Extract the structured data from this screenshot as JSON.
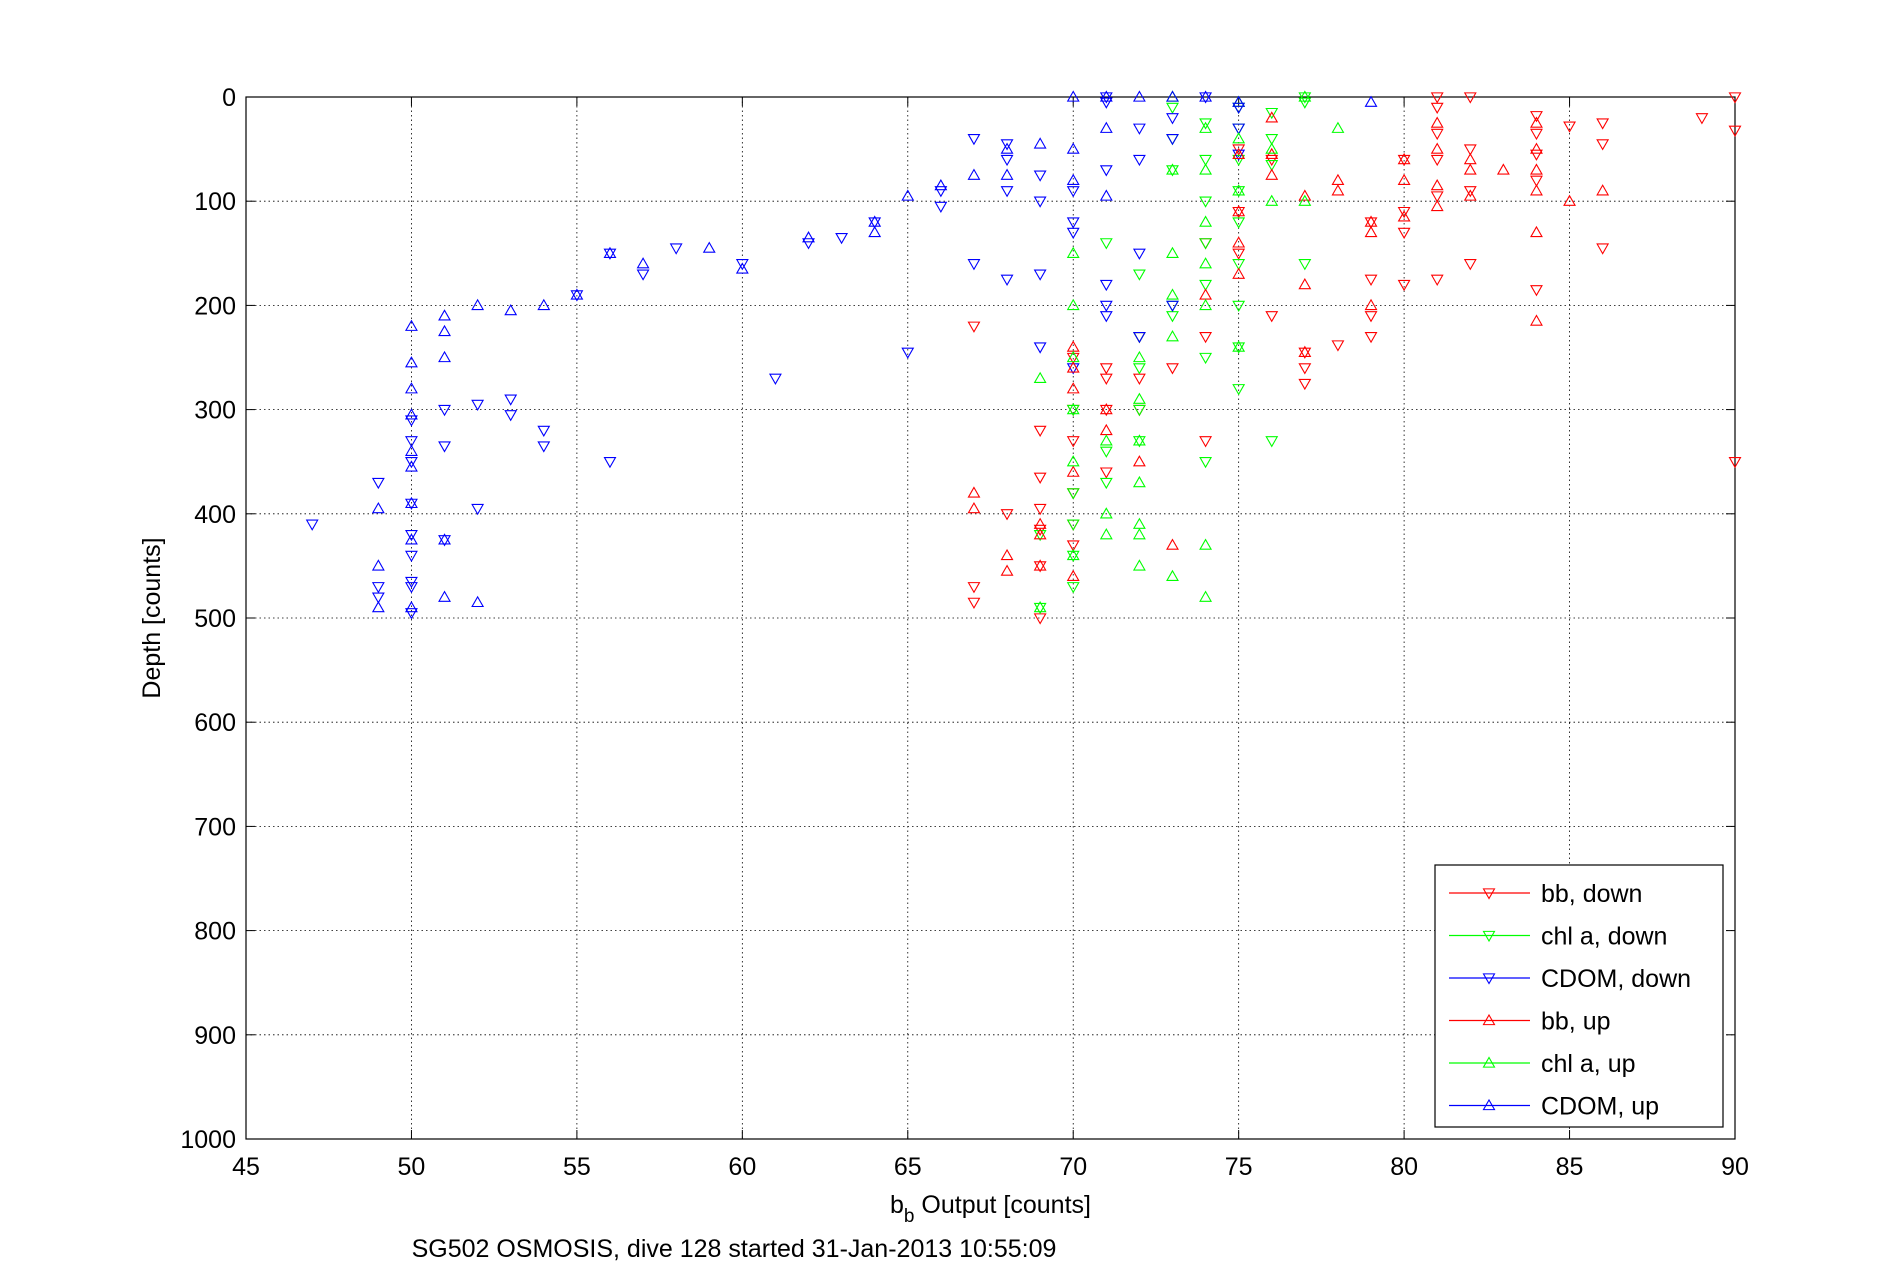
{
  "chart_data": {
    "type": "scatter",
    "title": "",
    "xlabel": {
      "main": "b",
      "sub": "b",
      "rest": " Output [counts]"
    },
    "ylabel": "Depth [counts]",
    "caption": "SG502 OSMOSIS, dive 128 started 31-Jan-2013 10:55:09",
    "xlim": [
      45,
      90
    ],
    "ylim": [
      0,
      1000
    ],
    "y_reversed": true,
    "grid": true,
    "legend_position": "bottom-right",
    "xticks": [
      "45",
      "50",
      "55",
      "60",
      "65",
      "70",
      "75",
      "80",
      "85",
      "90"
    ],
    "yticks": [
      "0",
      "100",
      "200",
      "300",
      "400",
      "500",
      "600",
      "700",
      "800",
      "900",
      "1000"
    ],
    "series": [
      {
        "name": "bb, down",
        "marker": "triangle-down",
        "color": "#ff0000",
        "x": [
          90,
          89,
          90,
          86,
          85,
          86,
          84,
          84,
          84,
          84,
          82,
          82,
          82,
          81,
          81,
          81,
          81,
          81,
          80,
          80,
          80,
          80,
          79,
          79,
          79,
          79,
          78,
          77,
          77,
          77,
          82,
          84,
          86,
          81,
          90,
          76,
          76,
          75,
          75,
          75,
          74,
          74,
          73,
          72,
          71,
          71,
          70,
          70,
          70,
          70,
          69,
          69,
          69,
          69,
          68,
          67,
          67,
          67,
          70,
          69,
          71,
          71,
          70,
          72,
          72,
          74,
          69
        ],
        "y": [
          0,
          20,
          32,
          25,
          28,
          45,
          18,
          35,
          55,
          80,
          0,
          50,
          90,
          0,
          10,
          35,
          60,
          95,
          60,
          110,
          130,
          180,
          120,
          175,
          210,
          230,
          238,
          245,
          260,
          275,
          160,
          185,
          145,
          175,
          350,
          60,
          210,
          50,
          110,
          150,
          140,
          230,
          260,
          300,
          300,
          360,
          300,
          330,
          380,
          410,
          320,
          365,
          395,
          415,
          400,
          220,
          470,
          485,
          430,
          450,
          260,
          270,
          250,
          230,
          270,
          330,
          500
        ]
      },
      {
        "name": "chl a, down",
        "marker": "triangle-down",
        "color": "#00ff00",
        "x": [
          77,
          77,
          76,
          76,
          76,
          75,
          75,
          75,
          75,
          75,
          75,
          75,
          75,
          74,
          74,
          74,
          74,
          74,
          73,
          73,
          73,
          73,
          72,
          72,
          72,
          72,
          71,
          71,
          70,
          70,
          70,
          70,
          69,
          69,
          74,
          76,
          77,
          75,
          74,
          73,
          72,
          71,
          70
        ],
        "y": [
          0,
          5,
          15,
          40,
          65,
          10,
          30,
          60,
          90,
          120,
          160,
          200,
          240,
          25,
          60,
          100,
          140,
          180,
          10,
          40,
          70,
          210,
          230,
          260,
          300,
          330,
          340,
          370,
          380,
          410,
          440,
          470,
          420,
          490,
          350,
          330,
          160,
          280,
          250,
          200,
          170,
          140,
          300
        ]
      },
      {
        "name": "CDOM, down",
        "marker": "triangle-down",
        "color": "#0000ff",
        "x": [
          71,
          71,
          72,
          73,
          73,
          74,
          75,
          75,
          75,
          72,
          71,
          70,
          70,
          69,
          69,
          68,
          68,
          67,
          68,
          69,
          70,
          71,
          71,
          72,
          72,
          73,
          71,
          70,
          69,
          68,
          67,
          66,
          66,
          65,
          64,
          63,
          62,
          61,
          60,
          58,
          57,
          56,
          55,
          54,
          53,
          52,
          51,
          51,
          50,
          50,
          50,
          50,
          50,
          49,
          49,
          49,
          50,
          50,
          51,
          52,
          47,
          53,
          54,
          56,
          50,
          50
        ],
        "y": [
          0,
          5,
          30,
          20,
          40,
          0,
          10,
          30,
          55,
          60,
          70,
          90,
          130,
          100,
          170,
          60,
          45,
          40,
          90,
          75,
          120,
          180,
          200,
          150,
          230,
          200,
          210,
          260,
          240,
          175,
          160,
          90,
          105,
          245,
          120,
          135,
          140,
          270,
          160,
          145,
          170,
          150,
          190,
          335,
          290,
          295,
          335,
          300,
          310,
          330,
          350,
          420,
          470,
          370,
          470,
          480,
          440,
          465,
          425,
          395,
          410,
          305,
          320,
          350,
          390,
          495
        ]
      },
      {
        "name": "bb, up",
        "marker": "triangle-up",
        "color": "#ff0000",
        "x": [
          84,
          84,
          84,
          82,
          82,
          81,
          81,
          81,
          80,
          80,
          79,
          79,
          79,
          78,
          78,
          77,
          77,
          77,
          76,
          76,
          76,
          75,
          75,
          75,
          75,
          70,
          70,
          70,
          70,
          69,
          69,
          68,
          67,
          67,
          68,
          69,
          70,
          71,
          71,
          72,
          73,
          74,
          84,
          85,
          86,
          80,
          81,
          82,
          83,
          84,
          84
        ],
        "y": [
          25,
          50,
          70,
          70,
          95,
          25,
          50,
          85,
          60,
          80,
          120,
          130,
          200,
          80,
          90,
          95,
          180,
          245,
          20,
          55,
          75,
          55,
          110,
          140,
          170,
          240,
          260,
          280,
          360,
          410,
          450,
          440,
          380,
          395,
          455,
          420,
          460,
          300,
          320,
          350,
          430,
          190,
          130,
          100,
          90,
          115,
          105,
          60,
          70,
          90,
          215
        ]
      },
      {
        "name": "chl a, up",
        "marker": "triangle-up",
        "color": "#00ff00",
        "x": [
          77,
          76,
          75,
          75,
          75,
          74,
          74,
          74,
          74,
          74,
          73,
          73,
          73,
          73,
          73,
          72,
          72,
          72,
          72,
          72,
          72,
          71,
          71,
          70,
          70,
          70,
          70,
          70,
          69,
          69,
          74,
          74,
          76,
          75,
          78,
          77,
          73,
          72,
          71,
          70
        ],
        "y": [
          0,
          50,
          5,
          40,
          90,
          30,
          70,
          120,
          160,
          200,
          0,
          70,
          150,
          190,
          230,
          250,
          290,
          330,
          370,
          410,
          450,
          400,
          420,
          150,
          200,
          250,
          300,
          350,
          270,
          490,
          430,
          480,
          100,
          240,
          30,
          100,
          460,
          420,
          330,
          440
        ]
      },
      {
        "name": "CDOM, up",
        "marker": "triangle-up",
        "color": "#0000ff",
        "x": [
          79,
          75,
          74,
          73,
          72,
          71,
          71,
          70,
          70,
          69,
          68,
          68,
          67,
          66,
          65,
          64,
          64,
          62,
          60,
          59,
          57,
          56,
          55,
          54,
          53,
          52,
          51,
          51,
          51,
          50,
          50,
          50,
          50,
          50,
          50,
          50,
          49,
          49,
          50,
          51,
          51,
          52,
          49,
          50,
          70,
          71
        ],
        "y": [
          5,
          5,
          0,
          0,
          0,
          0,
          30,
          0,
          50,
          45,
          50,
          75,
          75,
          85,
          95,
          120,
          130,
          135,
          165,
          145,
          160,
          150,
          190,
          200,
          205,
          200,
          210,
          225,
          250,
          220,
          255,
          280,
          305,
          355,
          390,
          425,
          450,
          490,
          490,
          480,
          425,
          485,
          395,
          340,
          80,
          95
        ]
      }
    ]
  }
}
